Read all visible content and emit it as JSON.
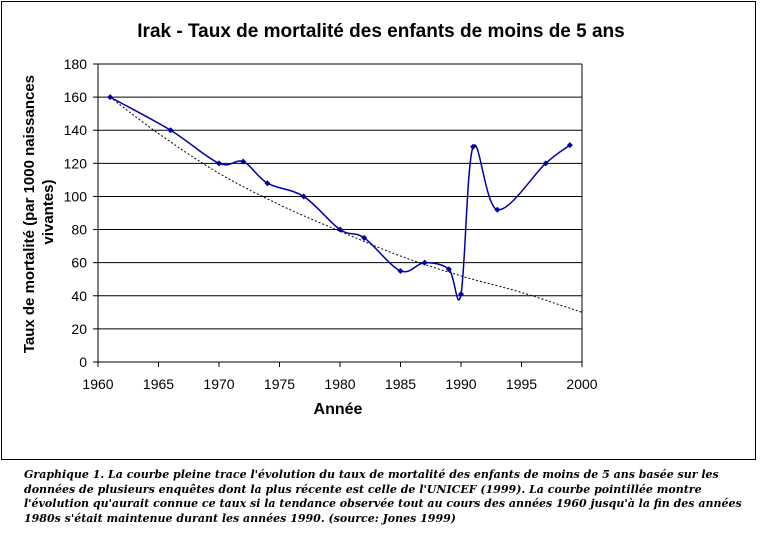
{
  "chart_data": {
    "type": "line",
    "title": "Irak - Taux de mortalité des enfants de moins de 5 ans",
    "xlabel": "Année",
    "ylabel_lines": [
      "Taux de mortalité (par 1000 naissances",
      "vivantes)"
    ],
    "xlim": [
      1960,
      2000
    ],
    "ylim": [
      0,
      180
    ],
    "x_ticks": [
      1960,
      1965,
      1970,
      1975,
      1980,
      1985,
      1990,
      1995,
      2000
    ],
    "y_ticks": [
      0,
      20,
      40,
      60,
      80,
      100,
      120,
      140,
      160,
      180
    ],
    "grid": "horizontal",
    "legend": "none",
    "series": [
      {
        "style": "solid",
        "color": "#0000a8",
        "marker": "diamond",
        "x": [
          1961,
          1966,
          1970,
          1972,
          1974,
          1977,
          1980,
          1982,
          1985,
          1987,
          1989,
          1990,
          1991,
          1993,
          1997,
          1999
        ],
        "y": [
          160,
          140,
          120,
          121,
          108,
          100,
          80,
          75,
          55,
          60,
          56,
          41,
          130,
          92,
          120,
          131
        ]
      },
      {
        "style": "dotted",
        "color": "#000000",
        "marker": "none",
        "x": [
          1961,
          1965,
          1970,
          1975,
          1980,
          1985,
          1990,
          1995,
          2000
        ],
        "y": [
          160,
          138,
          114,
          95,
          79,
          64,
          52,
          42,
          30
        ]
      }
    ]
  },
  "caption": "Graphique 1.  La courbe pleine trace l'évolution du taux de mortalité des enfants de moins de 5 ans basée sur les données de plusieurs enquêtes dont la plus récente est celle de l'UNICEF (1999).   La courbe pointillée montre l'évolution qu'aurait connue ce taux si la tendance observée tout au cours des années 1960  jusqu'à la fin des années 1980s s'était maintenue durant les années 1990. (source: Jones 1999)"
}
